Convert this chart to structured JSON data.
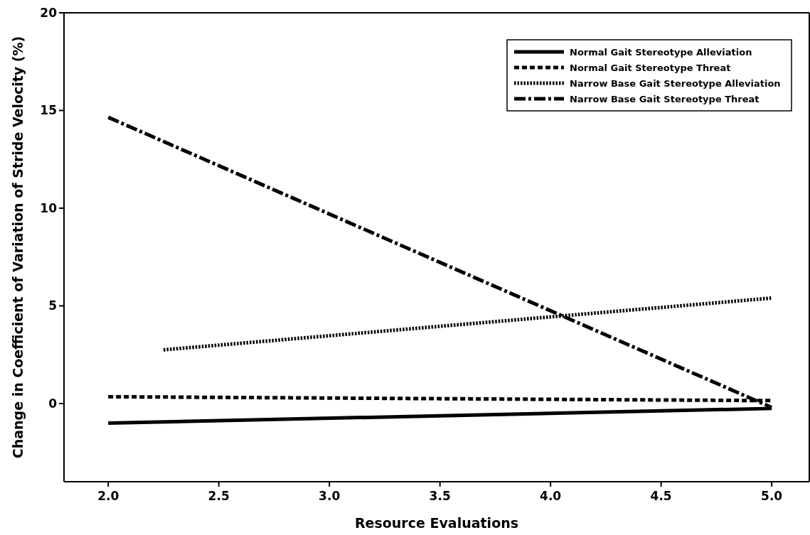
{
  "chart_data": {
    "type": "line",
    "xlabel": "Resource Evaluations",
    "ylabel": "Change in Coefficient of Variation of Stride Velocity (%)",
    "xlim": [
      1.8,
      5.17
    ],
    "xticks": [
      {
        "value": 2,
        "label": "2.0"
      },
      {
        "value": 2.5,
        "label": "2.5"
      },
      {
        "value": 3,
        "label": "3.0"
      },
      {
        "value": 3.5,
        "label": "3.5"
      },
      {
        "value": 4,
        "label": "4.0"
      },
      {
        "value": 4.5,
        "label": "4.5"
      },
      {
        "value": 5,
        "label": "5.0"
      }
    ],
    "ylim": [
      -4,
      20
    ],
    "yticks": [
      0,
      5,
      10,
      15,
      20
    ],
    "grid": false,
    "legend": "top right",
    "marker": "none",
    "series": [
      {
        "name": "Normal Gait Stereotype Alleviation",
        "color": "#000000",
        "line_style": "solid",
        "x": [
          2.0,
          5.0
        ],
        "values": [
          -1.0,
          -0.25
        ]
      },
      {
        "name": "Normal Gait Stereotype Threat",
        "color": "#000000",
        "line_style": "dashed",
        "x": [
          2.0,
          5.0
        ],
        "values": [
          0.35,
          0.15
        ]
      },
      {
        "name": "Narrow Base Gait Stereotype Alleviation",
        "color": "#000000",
        "line_style": "dotted",
        "x": [
          2.25,
          5.0
        ],
        "values": [
          2.75,
          5.4
        ]
      },
      {
        "name": "Narrow Base Gait Stereotype Threat",
        "color": "#000000",
        "line_style": "dashdot",
        "x": [
          2.0,
          5.0
        ],
        "values": [
          14.65,
          -0.2
        ]
      }
    ]
  }
}
